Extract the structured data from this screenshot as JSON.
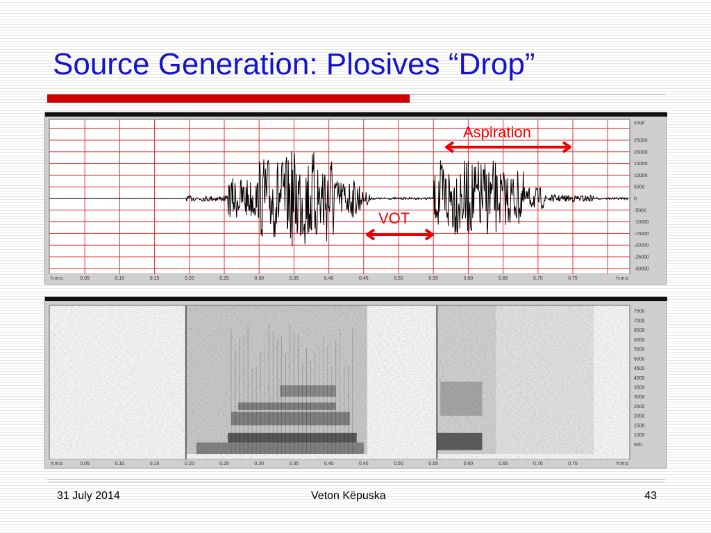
{
  "slide": {
    "title": "Source Generation: Plosives “Drop”"
  },
  "waveform": {
    "x_unit": "h:m:s",
    "y_unit": "smpl",
    "x_ticks": [
      "0.05",
      "0.10",
      "0.15",
      "0.20",
      "0.25",
      "0.30",
      "0.35",
      "0.40",
      "0.45",
      "0.50",
      "0.55",
      "0.60",
      "0.65",
      "0.70",
      "0.75"
    ],
    "y_ticks": [
      "25000",
      "20000",
      "15000",
      "10000",
      "5000",
      "0",
      "-5000",
      "-10000",
      "-15000",
      "-20000",
      "-25000",
      "-30000"
    ],
    "grid_color": "#e03030",
    "signal_color": "#000000"
  },
  "spectrogram": {
    "x_unit": "h:m:s",
    "x_ticks": [
      "0.05",
      "0.10",
      "0.15",
      "0.20",
      "0.25",
      "0.30",
      "0.35",
      "0.40",
      "0.45",
      "0.50",
      "0.55",
      "0.60",
      "0.65",
      "0.70",
      "0.75"
    ],
    "y_ticks": [
      "7500",
      "7000",
      "6500",
      "6000",
      "5500",
      "5000",
      "4500",
      "4000",
      "3500",
      "3000",
      "2500",
      "2000",
      "1500",
      "1000",
      "500"
    ]
  },
  "annotations": {
    "aspiration": "Aspiration",
    "vot": "VOT",
    "color": "#ee0000"
  },
  "footer": {
    "date": "31 July 2014",
    "author": "Veton Këpuska",
    "page_number": "43"
  }
}
